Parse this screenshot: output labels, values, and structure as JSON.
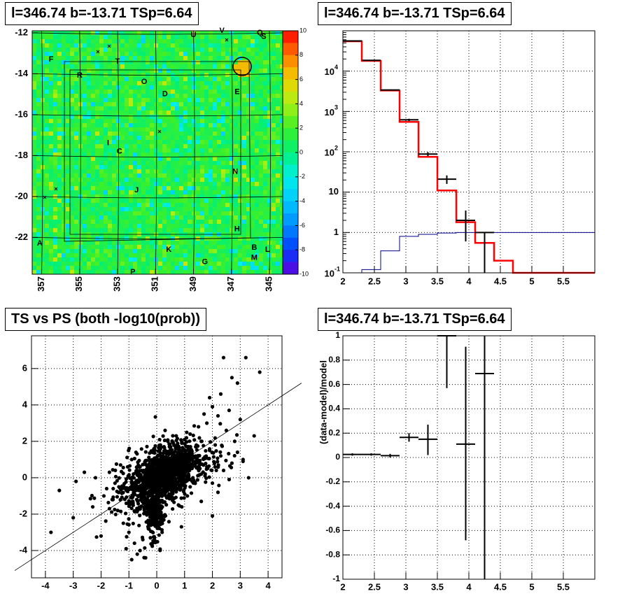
{
  "panels": {
    "skymap": {
      "title": "l=346.74 b=-13.71 TSp=6.64"
    },
    "spectrum": {
      "title": "l=346.74 b=-13.71 TSp=6.64"
    },
    "scatter": {
      "title": "TS vs PS (both -log10(prob))"
    },
    "residual": {
      "title": "l=346.74 b=-13.71 TSp=6.64"
    }
  },
  "chart_data": [
    {
      "type": "heatmap",
      "title": "l=346.74 b=-13.71 TSp=6.64",
      "x_ticks": [
        "357",
        "355",
        "353",
        "351",
        "349",
        "347",
        "345"
      ],
      "x_tick_values": [
        357,
        355,
        353,
        351,
        349,
        347,
        345
      ],
      "xlim": [
        357.5,
        344.3
      ],
      "y_ticks": [
        "-12",
        "-14",
        "-16",
        "-18",
        "-20",
        "-22"
      ],
      "y_tick_values": [
        -12,
        -14,
        -16,
        -18,
        -20,
        -22
      ],
      "ylim": [
        -23.8,
        -11.9
      ],
      "colorbar": {
        "min": -10,
        "max": 10,
        "ticks": [
          "10",
          "8",
          "6",
          "4",
          "2",
          "0",
          "-2",
          "-4",
          "-6",
          "-8",
          "-10"
        ]
      },
      "annotations": [
        {
          "text": "U",
          "l": 349.0,
          "b": -12.1
        },
        {
          "text": "V",
          "l": 347.5,
          "b": -11.9
        },
        {
          "text": "Q",
          "l": 345.5,
          "b": -12.0
        },
        {
          "text": "S",
          "l": 345.3,
          "b": -12.2
        },
        {
          "text": "F",
          "l": 356.5,
          "b": -13.3
        },
        {
          "text": "T",
          "l": 353.0,
          "b": -13.4
        },
        {
          "text": "R",
          "l": 355.0,
          "b": -14.1
        },
        {
          "text": "O",
          "l": 351.6,
          "b": -14.4
        },
        {
          "text": "D",
          "l": 350.5,
          "b": -15.0
        },
        {
          "text": "E",
          "l": 346.7,
          "b": -14.9
        },
        {
          "text": "I",
          "l": 353.5,
          "b": -17.4
        },
        {
          "text": "C",
          "l": 352.9,
          "b": -17.8
        },
        {
          "text": "N",
          "l": 346.8,
          "b": -18.8
        },
        {
          "text": "J",
          "l": 352.0,
          "b": -19.7
        },
        {
          "text": "H",
          "l": 346.7,
          "b": -21.6
        },
        {
          "text": "A",
          "l": 357.1,
          "b": -22.3
        },
        {
          "text": "B",
          "l": 345.8,
          "b": -22.5
        },
        {
          "text": "L",
          "l": 345.1,
          "b": -22.6
        },
        {
          "text": "K",
          "l": 350.3,
          "b": -22.6
        },
        {
          "text": "M",
          "l": 345.8,
          "b": -23.0
        },
        {
          "text": "G",
          "l": 348.4,
          "b": -23.2
        },
        {
          "text": "P",
          "l": 352.2,
          "b": -23.7
        }
      ]
    },
    {
      "type": "line",
      "title": "l=346.74 b=-13.71 TSp=6.64",
      "xlim": [
        2,
        6
      ],
      "ylim": [
        0.1,
        100000
      ],
      "yscale": "log",
      "x_ticks": [
        "2",
        "2.5",
        "3",
        "3.5",
        "4",
        "4.5",
        "5",
        "5.5"
      ],
      "x_tick_values": [
        2,
        2.5,
        3,
        3.5,
        4,
        4.5,
        5,
        5.5
      ],
      "y_ticks": [
        "10^-1",
        "1",
        "10",
        "10^2",
        "10^3",
        "10^4"
      ],
      "grid": true,
      "series": [
        {
          "kind": "step",
          "color": "#ff0000",
          "edges": [
            2.0,
            2.3,
            2.6,
            2.9,
            3.2,
            3.5,
            3.8,
            4.1,
            4.4,
            4.7,
            6.0
          ],
          "values": [
            55000,
            18000,
            3300,
            550,
            75,
            11,
            1.8,
            0.55,
            0.2,
            0.1
          ]
        },
        {
          "kind": "step",
          "color": "#00008b",
          "edges": [
            2.0,
            2.3,
            2.6,
            2.9,
            3.2,
            3.5,
            3.8,
            4.1,
            4.4,
            6.0
          ],
          "values": [
            0.06,
            0.12,
            0.35,
            0.8,
            0.9,
            0.97,
            1.0,
            1.0,
            1.0
          ]
        },
        {
          "kind": "errorbar",
          "color": "#000000",
          "points": [
            {
              "x": 2.15,
              "y": 56000,
              "xerr": 0.15,
              "ylo": 55000,
              "yhi": 57000
            },
            {
              "x": 2.45,
              "y": 18500,
              "xerr": 0.15,
              "ylo": 18000,
              "yhi": 19000
            },
            {
              "x": 2.75,
              "y": 3400,
              "xerr": 0.15,
              "ylo": 3300,
              "yhi": 3500
            },
            {
              "x": 3.05,
              "y": 620,
              "xerr": 0.15,
              "ylo": 580,
              "yhi": 660
            },
            {
              "x": 3.35,
              "y": 88,
              "xerr": 0.15,
              "ylo": 78,
              "yhi": 98
            },
            {
              "x": 3.65,
              "y": 21,
              "xerr": 0.15,
              "ylo": 16,
              "yhi": 26
            },
            {
              "x": 3.95,
              "y": 2,
              "xerr": 0.15,
              "ylo": 0.6,
              "yhi": 3.5
            },
            {
              "x": 4.25,
              "y": 1,
              "xerr": 0.15,
              "ylo": 0.1,
              "yhi": 1.0
            }
          ]
        }
      ]
    },
    {
      "type": "scatter",
      "title": "TS vs PS (both -log10(prob))",
      "xlim": [
        -4.5,
        4.5
      ],
      "ylim": [
        -5.5,
        7.8
      ],
      "x_ticks": [
        "-4",
        "-3",
        "-2",
        "-1",
        "0",
        "1",
        "2",
        "3",
        "4"
      ],
      "x_tick_values": [
        -4,
        -3,
        -2,
        -1,
        0,
        1,
        2,
        3,
        4
      ],
      "y_ticks": [
        "-4",
        "-2",
        "0",
        "2",
        "4",
        "6"
      ],
      "y_tick_values": [
        -4,
        -2,
        0,
        2,
        4,
        6
      ],
      "grid": true,
      "reference_line": {
        "slope": 1,
        "intercept": 0
      },
      "points": [
        [
          3.2,
          6.6
        ],
        [
          2.4,
          6.6
        ],
        [
          3.7,
          5.8
        ],
        [
          2.9,
          5.2
        ],
        [
          2.7,
          5.5
        ],
        [
          2.3,
          4.6
        ],
        [
          1.9,
          4.4
        ],
        [
          2.0,
          3.9
        ],
        [
          2.6,
          3.7
        ],
        [
          1.7,
          3.5
        ],
        [
          2.2,
          3.4
        ],
        [
          3.0,
          3.2
        ],
        [
          1.8,
          3.0
        ],
        [
          1.5,
          2.8
        ],
        [
          2.5,
          2.6
        ],
        [
          3.5,
          2.3
        ],
        [
          1.2,
          2.4
        ],
        [
          2.8,
          2.0
        ],
        [
          2.1,
          1.8
        ],
        [
          1.9,
          1.5
        ],
        [
          1.6,
          2.0
        ],
        [
          1.4,
          1.7
        ],
        [
          2.3,
          1.2
        ],
        [
          3.1,
          1.0
        ],
        [
          3.3,
          0.0
        ],
        [
          2.7,
          0.8
        ],
        [
          2.9,
          1.4
        ],
        [
          1.3,
          1.2
        ],
        [
          1.0,
          1.5
        ],
        [
          0.9,
          1.9
        ],
        [
          2.4,
          0.4
        ],
        [
          1.8,
          0.6
        ],
        [
          1.6,
          0.2
        ],
        [
          2.0,
          -0.3
        ],
        [
          1.2,
          -0.5
        ],
        [
          2.6,
          -0.1
        ],
        [
          1.4,
          0.9
        ],
        [
          1.1,
          0.5
        ],
        [
          0.8,
          1.0
        ],
        [
          0.6,
          1.3
        ],
        [
          0.5,
          1.7
        ],
        [
          0.4,
          2.0
        ],
        [
          0.7,
          2.3
        ],
        [
          0.3,
          2.6
        ],
        [
          -2.9,
          -0.2
        ],
        [
          -3.5,
          -0.7
        ],
        [
          -3.8,
          -3.0
        ],
        [
          -3.0,
          -2.2
        ],
        [
          -2.3,
          -1.6
        ],
        [
          -2.0,
          -3.2
        ],
        [
          -2.6,
          0.3
        ],
        [
          -2.2,
          0.0
        ],
        [
          -1.8,
          -0.6
        ],
        [
          -1.6,
          -1.2
        ],
        [
          -1.4,
          -1.8
        ],
        [
          -1.2,
          -2.5
        ],
        [
          -1.0,
          -3.0
        ],
        [
          -0.8,
          -3.6
        ],
        [
          -0.6,
          -4.0
        ],
        [
          -0.4,
          -4.4
        ],
        [
          -0.9,
          -4.5
        ],
        [
          -0.7,
          -4.2
        ],
        [
          -1.1,
          -3.9
        ],
        [
          -0.5,
          -3.4
        ],
        [
          -0.3,
          -2.8
        ],
        [
          -0.2,
          -2.4
        ],
        [
          -1.7,
          0.3
        ],
        [
          -1.3,
          0.7
        ],
        [
          -0.9,
          1.0
        ],
        [
          -0.6,
          0.6
        ],
        [
          -1.5,
          -0.3
        ],
        [
          -1.9,
          -1.0
        ],
        [
          -0.4,
          0.9
        ],
        [
          0.2,
          1.1
        ],
        [
          1.1,
          -1.0
        ],
        [
          1.6,
          -1.3
        ],
        [
          2.0,
          -2.1
        ],
        [
          0.9,
          -1.6
        ],
        [
          3.1,
          0.9
        ],
        [
          2.2,
          -0.8
        ],
        [
          1.3,
          0.0
        ],
        [
          0.2,
          -1.6
        ],
        [
          -0.2,
          -1.0
        ],
        [
          0.4,
          -0.5
        ]
      ],
      "cloud": {
        "count": 1400,
        "center": [
          0.2,
          0.1
        ],
        "spread": [
          0.6,
          0.8
        ],
        "corr": 0.55
      }
    },
    {
      "type": "scatter",
      "title": "l=346.74 b=-13.71 TSp=6.64",
      "ylabel": "(data-model)/model",
      "xlim": [
        2,
        6
      ],
      "ylim": [
        -1,
        1
      ],
      "x_ticks": [
        "2",
        "2.5",
        "3",
        "3.5",
        "4",
        "4.5",
        "5",
        "5.5"
      ],
      "x_tick_values": [
        2,
        2.5,
        3,
        3.5,
        4,
        4.5,
        5,
        5.5
      ],
      "y_ticks": [
        "1",
        "0.8",
        "0.6",
        "0.4",
        "0.2",
        "0",
        "-0.2",
        "-0.4",
        "-0.6",
        "-0.8",
        "-1"
      ],
      "y_tick_values": [
        1,
        0.8,
        0.6,
        0.4,
        0.2,
        0,
        -0.2,
        -0.4,
        -0.6,
        -0.8,
        -1
      ],
      "grid": true,
      "points": [
        {
          "x": 2.15,
          "y": 0.025,
          "xerr": 0.15,
          "ylo": 0.015,
          "yhi": 0.035
        },
        {
          "x": 2.45,
          "y": 0.025,
          "xerr": 0.15,
          "ylo": 0.015,
          "yhi": 0.035
        },
        {
          "x": 2.75,
          "y": 0.015,
          "xerr": 0.15,
          "ylo": 0.0,
          "yhi": 0.03
        },
        {
          "x": 3.05,
          "y": 0.165,
          "xerr": 0.15,
          "ylo": 0.13,
          "yhi": 0.2
        },
        {
          "x": 3.35,
          "y": 0.15,
          "xerr": 0.15,
          "ylo": 0.02,
          "yhi": 0.27
        },
        {
          "x": 3.65,
          "y": 1.0,
          "xerr": 0.15,
          "ylo": 0.57,
          "yhi": 1.0
        },
        {
          "x": 3.95,
          "y": 0.11,
          "xerr": 0.15,
          "ylo": -0.68,
          "yhi": 0.91
        },
        {
          "x": 4.25,
          "y": 0.69,
          "xerr": 0.15,
          "ylo": -1.0,
          "yhi": 1.0
        }
      ]
    }
  ]
}
